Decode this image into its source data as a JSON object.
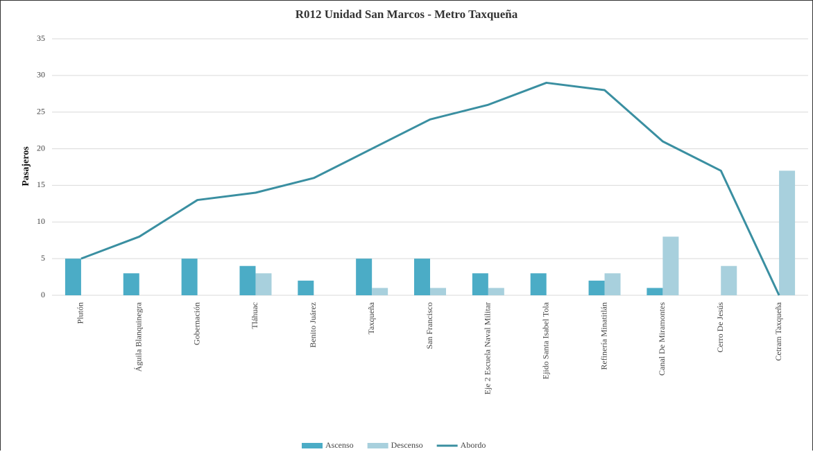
{
  "chart_data": {
    "type": "combo",
    "title": "R012 Unidad San Marcos - Metro Taxqueña",
    "y_label": "Pasajeros",
    "categories": [
      "Plutón",
      "Águila Blanquinegra",
      "Gobernación",
      "Tláhuac",
      "Benito Juárez",
      "Taxqueña",
      "San Francisco",
      "Eje 2  Escuela Naval Militar",
      "Ejido Santa Isabel Tola",
      "Refinería Minatitlán",
      "Canal De Miramontes",
      "Cerro De Jesús",
      "Cetram Taxqueña"
    ],
    "series": [
      {
        "name": "Ascenso",
        "type": "bar",
        "color": "#4bacc6",
        "values": [
          5,
          3,
          5,
          4,
          2,
          5,
          5,
          3,
          3,
          2,
          1,
          0,
          0
        ]
      },
      {
        "name": "Descenso",
        "type": "bar",
        "color": "#a8d0dd",
        "values": [
          0,
          0,
          0,
          3,
          0,
          1,
          1,
          1,
          0,
          3,
          8,
          4,
          17
        ]
      },
      {
        "name": "Abordo",
        "type": "line",
        "color": "#3a8fa1",
        "values": [
          5,
          8,
          13,
          14,
          16,
          20,
          24,
          26,
          29,
          28,
          21,
          17,
          0
        ]
      }
    ],
    "ylim": [
      0,
      35
    ],
    "yticks": [
      0,
      5,
      10,
      15,
      20,
      25,
      30,
      35
    ],
    "grid": true,
    "legend": "bottom"
  }
}
